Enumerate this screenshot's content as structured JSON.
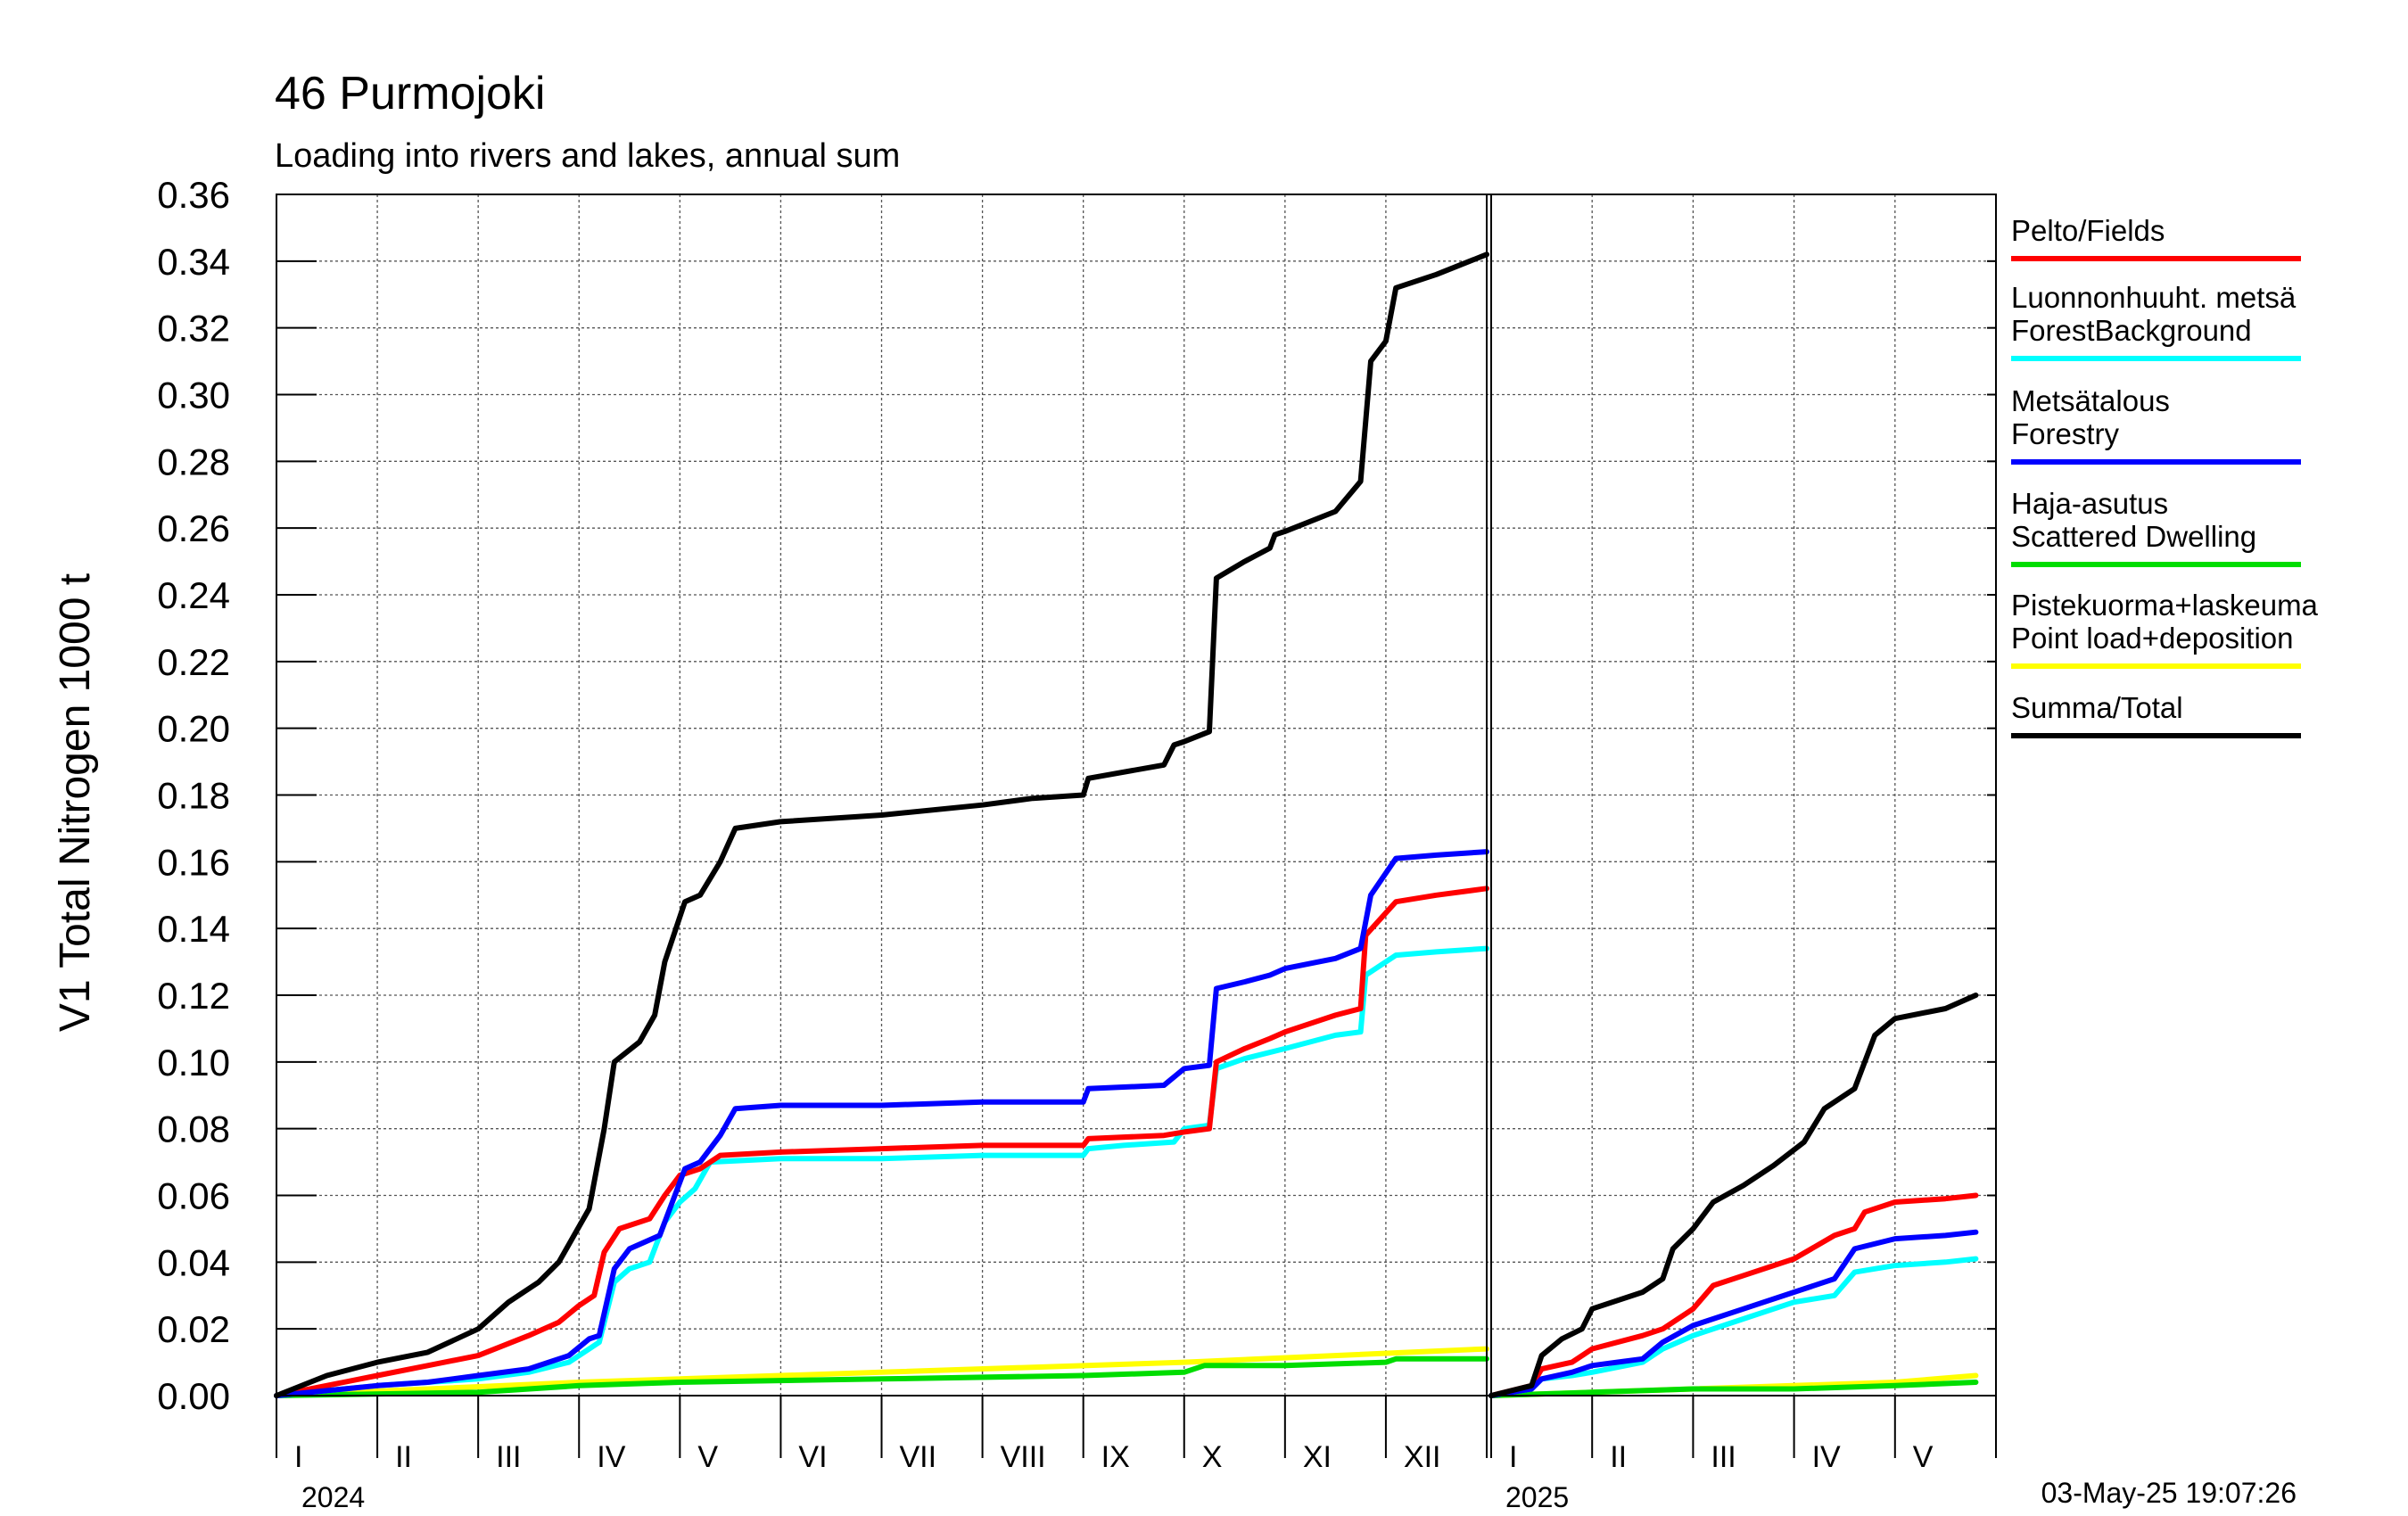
{
  "title": "46 Purmojoki",
  "subtitle": "Loading into rivers and lakes, annual sum",
  "timestamp": "03-May-25 19:07:26",
  "chart_data": {
    "type": "line",
    "ylabel": "V1 Total Nitrogen 1000 t",
    "ylim": [
      0,
      0.36
    ],
    "yticks": [
      0.0,
      0.02,
      0.04,
      0.06,
      0.08,
      0.1,
      0.12,
      0.14,
      0.16,
      0.18,
      0.2,
      0.22,
      0.24,
      0.26,
      0.28,
      0.3,
      0.32,
      0.34,
      0.36
    ],
    "ytick_labels": [
      "0.00",
      "0.02",
      "0.04",
      "0.06",
      "0.08",
      "0.10",
      "0.12",
      "0.14",
      "0.16",
      "0.18",
      "0.20",
      "0.22",
      "0.24",
      "0.26",
      "0.28",
      "0.30",
      "0.32",
      "0.34",
      "0.36"
    ],
    "grid": true,
    "legend_position": "right",
    "months_2024": [
      "I",
      "II",
      "III",
      "IV",
      "V",
      "VI",
      "VII",
      "VIII",
      "IX",
      "X",
      "XI",
      "XII"
    ],
    "months_2025": [
      "I",
      "II",
      "III",
      "IV",
      "V"
    ],
    "year_labels": [
      "2024",
      "2025"
    ],
    "legend": [
      {
        "lines": [
          "Pelto/Fields"
        ],
        "color": "#ff0000"
      },
      {
        "lines": [
          "Luonnonhuuht. metsä",
          "ForestBackground"
        ],
        "color": "#00ffff"
      },
      {
        "lines": [
          "Metsätalous",
          "Forestry"
        ],
        "color": "#0000ff"
      },
      {
        "lines": [
          "Haja-asutus",
          "Scattered Dwelling"
        ],
        "color": "#00dd00"
      },
      {
        "lines": [
          "Pistekuorma+laskeuma",
          "Point load+deposition"
        ],
        "color": "#ffff00"
      },
      {
        "lines": [
          "Summa/Total"
        ],
        "color": "#000000"
      }
    ],
    "series": [
      {
        "color": "#ffff00",
        "points_2024": [
          [
            0,
            0
          ],
          [
            3,
            0.004
          ],
          [
            6,
            0.007
          ],
          [
            9,
            0.01
          ],
          [
            12,
            0.014
          ]
        ],
        "points_2025": [
          [
            0,
            0
          ],
          [
            2,
            0.002
          ],
          [
            4,
            0.004
          ],
          [
            4.8,
            0.006
          ]
        ]
      },
      {
        "color": "#00dd00",
        "points_2024": [
          [
            0,
            0
          ],
          [
            2,
            0.001
          ],
          [
            3,
            0.003
          ],
          [
            4,
            0.004
          ],
          [
            6,
            0.005
          ],
          [
            8,
            0.006
          ],
          [
            9,
            0.007
          ],
          [
            9.2,
            0.009
          ],
          [
            10,
            0.009
          ],
          [
            11,
            0.01
          ],
          [
            11.1,
            0.011
          ],
          [
            12,
            0.011
          ]
        ],
        "points_2025": [
          [
            0,
            0
          ],
          [
            1,
            0.001
          ],
          [
            2,
            0.002
          ],
          [
            3,
            0.002
          ],
          [
            4,
            0.003
          ],
          [
            4.8,
            0.004
          ]
        ]
      },
      {
        "color": "#00ffff",
        "points_2024": [
          [
            0,
            0
          ],
          [
            1,
            0.003
          ],
          [
            1.5,
            0.004
          ],
          [
            2,
            0.005
          ],
          [
            2.5,
            0.007
          ],
          [
            2.9,
            0.01
          ],
          [
            3.1,
            0.014
          ],
          [
            3.2,
            0.016
          ],
          [
            3.35,
            0.034
          ],
          [
            3.5,
            0.038
          ],
          [
            3.7,
            0.04
          ],
          [
            3.85,
            0.052
          ],
          [
            4.0,
            0.058
          ],
          [
            4.15,
            0.062
          ],
          [
            4.3,
            0.07
          ],
          [
            5,
            0.071
          ],
          [
            6,
            0.071
          ],
          [
            7,
            0.072
          ],
          [
            8,
            0.072
          ],
          [
            8.05,
            0.074
          ],
          [
            8.4,
            0.075
          ],
          [
            8.9,
            0.076
          ],
          [
            9.0,
            0.08
          ],
          [
            9.25,
            0.081
          ],
          [
            9.32,
            0.098
          ],
          [
            9.6,
            0.101
          ],
          [
            10,
            0.104
          ],
          [
            10.5,
            0.108
          ],
          [
            10.75,
            0.109
          ],
          [
            10.8,
            0.126
          ],
          [
            11.1,
            0.132
          ],
          [
            11.5,
            0.133
          ],
          [
            12,
            0.134
          ]
        ],
        "points_2025": [
          [
            0,
            0
          ],
          [
            0.4,
            0.002
          ],
          [
            0.5,
            0.005
          ],
          [
            0.8,
            0.006
          ],
          [
            1,
            0.007
          ],
          [
            1.5,
            0.01
          ],
          [
            1.7,
            0.014
          ],
          [
            2,
            0.018
          ],
          [
            2.5,
            0.023
          ],
          [
            3,
            0.028
          ],
          [
            3.4,
            0.03
          ],
          [
            3.6,
            0.037
          ],
          [
            4,
            0.039
          ],
          [
            4.5,
            0.04
          ],
          [
            4.8,
            0.041
          ]
        ]
      },
      {
        "color": "#ff0000",
        "points_2024": [
          [
            0,
            0
          ],
          [
            1,
            0.006
          ],
          [
            1.5,
            0.009
          ],
          [
            2,
            0.012
          ],
          [
            2.5,
            0.018
          ],
          [
            2.8,
            0.022
          ],
          [
            3,
            0.027
          ],
          [
            3.15,
            0.03
          ],
          [
            3.25,
            0.043
          ],
          [
            3.4,
            0.05
          ],
          [
            3.7,
            0.053
          ],
          [
            3.85,
            0.06
          ],
          [
            4.0,
            0.066
          ],
          [
            4.2,
            0.068
          ],
          [
            4.4,
            0.072
          ],
          [
            5,
            0.073
          ],
          [
            6,
            0.074
          ],
          [
            7,
            0.075
          ],
          [
            8,
            0.075
          ],
          [
            8.05,
            0.077
          ],
          [
            8.8,
            0.078
          ],
          [
            9.0,
            0.079
          ],
          [
            9.25,
            0.08
          ],
          [
            9.32,
            0.1
          ],
          [
            9.6,
            0.104
          ],
          [
            9.85,
            0.107
          ],
          [
            10,
            0.109
          ],
          [
            10.5,
            0.114
          ],
          [
            10.75,
            0.116
          ],
          [
            10.8,
            0.138
          ],
          [
            11.1,
            0.148
          ],
          [
            11.5,
            0.15
          ],
          [
            12,
            0.152
          ]
        ],
        "points_2025": [
          [
            0,
            0
          ],
          [
            0.4,
            0.003
          ],
          [
            0.5,
            0.008
          ],
          [
            0.8,
            0.01
          ],
          [
            1,
            0.014
          ],
          [
            1.5,
            0.018
          ],
          [
            1.7,
            0.02
          ],
          [
            2,
            0.026
          ],
          [
            2.2,
            0.033
          ],
          [
            2.5,
            0.036
          ],
          [
            3,
            0.041
          ],
          [
            3.4,
            0.048
          ],
          [
            3.6,
            0.05
          ],
          [
            3.7,
            0.055
          ],
          [
            4,
            0.058
          ],
          [
            4.5,
            0.059
          ],
          [
            4.8,
            0.06
          ]
        ]
      },
      {
        "color": "#0000ff",
        "points_2024": [
          [
            0,
            0
          ],
          [
            1,
            0.003
          ],
          [
            1.5,
            0.004
          ],
          [
            2,
            0.006
          ],
          [
            2.5,
            0.008
          ],
          [
            2.9,
            0.012
          ],
          [
            3.1,
            0.017
          ],
          [
            3.2,
            0.018
          ],
          [
            3.35,
            0.038
          ],
          [
            3.5,
            0.044
          ],
          [
            3.8,
            0.048
          ],
          [
            3.95,
            0.06
          ],
          [
            4.05,
            0.068
          ],
          [
            4.2,
            0.07
          ],
          [
            4.4,
            0.078
          ],
          [
            4.55,
            0.086
          ],
          [
            5,
            0.087
          ],
          [
            6,
            0.087
          ],
          [
            7,
            0.088
          ],
          [
            8,
            0.088
          ],
          [
            8.05,
            0.092
          ],
          [
            8.8,
            0.093
          ],
          [
            9.0,
            0.098
          ],
          [
            9.25,
            0.099
          ],
          [
            9.32,
            0.122
          ],
          [
            9.6,
            0.124
          ],
          [
            9.85,
            0.126
          ],
          [
            10,
            0.128
          ],
          [
            10.5,
            0.131
          ],
          [
            10.75,
            0.134
          ],
          [
            10.85,
            0.15
          ],
          [
            11.1,
            0.161
          ],
          [
            11.5,
            0.162
          ],
          [
            12,
            0.163
          ]
        ],
        "points_2025": [
          [
            0,
            0
          ],
          [
            0.4,
            0.002
          ],
          [
            0.5,
            0.005
          ],
          [
            0.8,
            0.007
          ],
          [
            1,
            0.009
          ],
          [
            1.5,
            0.011
          ],
          [
            1.7,
            0.016
          ],
          [
            2,
            0.021
          ],
          [
            2.5,
            0.026
          ],
          [
            3,
            0.031
          ],
          [
            3.4,
            0.035
          ],
          [
            3.6,
            0.044
          ],
          [
            4,
            0.047
          ],
          [
            4.5,
            0.048
          ],
          [
            4.8,
            0.049
          ]
        ]
      },
      {
        "color": "#000000",
        "points_2024": [
          [
            0,
            0
          ],
          [
            0.5,
            0.006
          ],
          [
            1,
            0.01
          ],
          [
            1.5,
            0.013
          ],
          [
            2,
            0.02
          ],
          [
            2.3,
            0.028
          ],
          [
            2.6,
            0.034
          ],
          [
            2.8,
            0.04
          ],
          [
            2.95,
            0.048
          ],
          [
            3.1,
            0.056
          ],
          [
            3.25,
            0.08
          ],
          [
            3.35,
            0.1
          ],
          [
            3.6,
            0.106
          ],
          [
            3.75,
            0.114
          ],
          [
            3.85,
            0.13
          ],
          [
            4.05,
            0.148
          ],
          [
            4.2,
            0.15
          ],
          [
            4.4,
            0.16
          ],
          [
            4.55,
            0.17
          ],
          [
            5,
            0.172
          ],
          [
            6,
            0.174
          ],
          [
            7,
            0.177
          ],
          [
            7.5,
            0.179
          ],
          [
            8,
            0.18
          ],
          [
            8.05,
            0.185
          ],
          [
            8.8,
            0.189
          ],
          [
            8.9,
            0.195
          ],
          [
            9.0,
            0.196
          ],
          [
            9.25,
            0.199
          ],
          [
            9.32,
            0.245
          ],
          [
            9.6,
            0.25
          ],
          [
            9.85,
            0.254
          ],
          [
            9.9,
            0.258
          ],
          [
            10,
            0.259
          ],
          [
            10.5,
            0.265
          ],
          [
            10.75,
            0.274
          ],
          [
            10.85,
            0.31
          ],
          [
            11.0,
            0.316
          ],
          [
            11.1,
            0.332
          ],
          [
            11.5,
            0.336
          ],
          [
            12,
            0.342
          ]
        ],
        "points_2025": [
          [
            0,
            0
          ],
          [
            0.4,
            0.003
          ],
          [
            0.5,
            0.012
          ],
          [
            0.7,
            0.017
          ],
          [
            0.9,
            0.02
          ],
          [
            1,
            0.026
          ],
          [
            1.5,
            0.031
          ],
          [
            1.7,
            0.035
          ],
          [
            1.8,
            0.044
          ],
          [
            2,
            0.05
          ],
          [
            2.2,
            0.058
          ],
          [
            2.5,
            0.063
          ],
          [
            2.8,
            0.069
          ],
          [
            3.1,
            0.076
          ],
          [
            3.3,
            0.086
          ],
          [
            3.6,
            0.092
          ],
          [
            3.8,
            0.108
          ],
          [
            4,
            0.113
          ],
          [
            4.5,
            0.116
          ],
          [
            4.8,
            0.12
          ]
        ]
      }
    ]
  }
}
